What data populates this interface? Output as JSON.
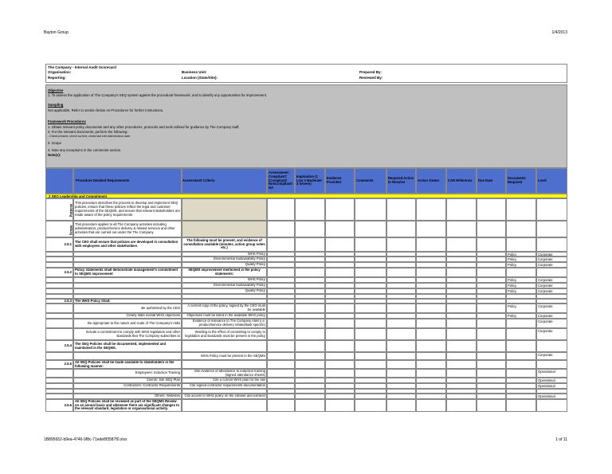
{
  "header": {
    "company": "Bayton Group",
    "date": "1/4/2013"
  },
  "footer": {
    "file": "1B895652-b9ea-4746-9f8c-71ede8f3587f0.xlsx",
    "page": "1 of 11"
  },
  "info": {
    "title": "The Company - Internal Audit Scorecard",
    "organisation": "Organisation:",
    "reporting": "Reporting:",
    "business_unit": "Business Unit:",
    "location": "Location (State/Site):",
    "prepared_by": "Prepared By:",
    "reviewed_by": "Reviewed By:"
  },
  "intro": {
    "lines": [
      "Objective",
      "1. To assess the application of The Company's SEQ system against the procedural framework, and to identify any opportunities for improvement.",
      "Sampling",
      "Not applicable. Refer to section below on Procedures for further instructions.",
      "Framework Procedures",
      "1. Obtain relevant policy documents and any other procedures, protocols and tools utilised for guidance by The Company staff.",
      "2. For the relevant documents, perform the following:",
      "- Check present, check current, check last edit date/revision date",
      "3. Scope",
      "4. Note any exceptions in the comments section.",
      "Note(s):"
    ]
  },
  "table": {
    "columns": [
      "Procedure Detailed Requirements",
      "Assessment Criteria",
      "Assessment: Compliant? (Compliant/ NonCompliant/ NA",
      "Implication (1 Low 2 Moderate 3 Severe)",
      "Evidence Provided",
      "Comments",
      "Required Action to Resolve",
      "Action Owner",
      "CAR Reference",
      "Due Date",
      "Documents Required",
      "Level"
    ],
    "section": "2 SEQ Leadership and Commitment",
    "rows": [
      {
        "label": "Purpose",
        "requirement": "This procedure describes the process to develop and implement SEQ policies, ensure that these policies reflect the legal and customer requirements of the SEQMS, and ensure that relevant stakeholders are made aware of the policy requirements"
      },
      {
        "label": "Scope",
        "requirement": "This procedure applies to all The Company activities including administration, product/service delivery & related services and other activities that are carried out under the The Company"
      },
      {
        "num": "2.5.1",
        "requirement": "The CEO shall ensure that policies are developed in consultation with employees and other stakeholders",
        "criteria": "The following must be present, and evidence of consultation available (minutes, action group notes etc.)"
      },
      {
        "criteria": "WHS Policy",
        "documents": "Policy",
        "level": "Corporate"
      },
      {
        "criteria": "Environmental Sustainability Policy",
        "documents": "Policy",
        "level": "Corporate"
      },
      {
        "criteria": "Quality Policy",
        "documents": "Policy",
        "level": "Corporate"
      },
      {
        "num": "2.5.2",
        "requirement": "Policy statements shall demonstrate management's commitment to SEQMS improvement",
        "criteria": "SEQMS improvement mentioned in the policy statements:"
      },
      {
        "criteria": "WHS Policy",
        "documents": "Policy",
        "level": "Corporate"
      },
      {
        "criteria": "Environmental Sustainability Policy",
        "documents": "Policy",
        "level": "Corporate"
      },
      {
        "criteria": "Quality Policy",
        "documents": "Policy",
        "level": "Corporate"
      },
      {
        "num": "2.5.3",
        "requirement": "The WHS Policy Shall:"
      },
      {
        "requirement": "Be authorised by the CEO",
        "criteria": "A current copy of the policy, signed by the CEO must be available",
        "documents": "Policy",
        "level": "Corporate"
      },
      {
        "requirement": "Clearly state overall WHS objectives",
        "criteria": "Objectives must be listed in the available WHS policy",
        "documents": "Policy",
        "level": "Corporate"
      },
      {
        "requirement": "Be appropriate to the nature and scale of The Company's risks",
        "criteria": "Evidence of relevance to The Company risks (i.e. product/service delivery related/task specific)",
        "level": "Corporate"
      },
      {
        "requirement": "Include a commitment to comply with WHS legislation and other standards that The Company subscribes to",
        "criteria": "Wording to the effect of committing to comply to legislation and standards must be present in the policy",
        "level": "Corporate"
      },
      {
        "num": "2.5.4",
        "requirement": "The SEQ Policies shall be documented, implemented and maintained in the SEQMS."
      },
      {
        "criteria": "WHS Policy must be present in the SEQMS",
        "level": "Corporate"
      },
      {
        "num": "2.5.5",
        "requirement": "All SEQ Policies shall be made available to stakeholders in the following manner:"
      },
      {
        "requirement": "Employees: Induction Training",
        "criteria": "Site evidence of attendance to induction training (signed attendance sheets)",
        "level": "Operational"
      },
      {
        "requirement": "Clients: Site SEQ Plan",
        "criteria": "Cite a current WHS plan for the site",
        "level": "Operational"
      },
      {
        "requirement": "Contractors: Contractor Requirements",
        "criteria": "Cite signed contractor requirements documentation",
        "level": "Operational"
      },
      {
        "requirement": "Others: Websites",
        "criteria": "Cite access to WHS policy on the intranet and extranet",
        "level": "Operational"
      },
      {
        "num": "2.5.6",
        "requirement": "All SEQ Policies shall be reviewed as part of the SEQMS Review on an annual basis and whenever there are significant changes to the relevant standard, legislation or organisational activity."
      }
    ]
  }
}
